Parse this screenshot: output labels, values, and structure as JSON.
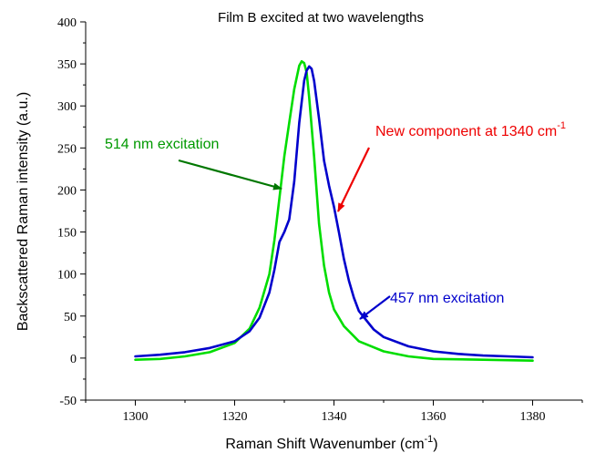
{
  "chart_data": {
    "type": "line",
    "title": "Film B excited at two wavelengths",
    "xlabel": "Raman Shift Wavenumber (cm",
    "xlabel_sup": "-1",
    "xlabel_end": ")",
    "ylabel": "Backscattered Raman intensity (a.u.)",
    "xlim": [
      1290,
      1390
    ],
    "ylim": [
      -50,
      400
    ],
    "xticks": [
      1300,
      1320,
      1340,
      1360,
      1380
    ],
    "yticks": [
      -50,
      0,
      50,
      100,
      150,
      200,
      250,
      300,
      350,
      400
    ],
    "grid": false,
    "series": [
      {
        "color": "#00dd00",
        "x": [
          1300,
          1305,
          1310,
          1315,
          1320,
          1323,
          1325,
          1327,
          1328,
          1329,
          1330,
          1331,
          1332,
          1333,
          1333.5,
          1334,
          1334.5,
          1335,
          1336,
          1337,
          1338,
          1339,
          1340,
          1342,
          1345,
          1350,
          1355,
          1360,
          1370,
          1380
        ],
        "values": [
          -2,
          -1,
          2,
          7,
          18,
          35,
          60,
          100,
          140,
          190,
          240,
          280,
          320,
          348,
          353,
          351,
          340,
          310,
          240,
          160,
          110,
          78,
          58,
          38,
          20,
          8,
          2,
          -1,
          -2,
          -3
        ]
      },
      {
        "color": "#0000cc",
        "x": [
          1300,
          1305,
          1310,
          1315,
          1320,
          1323,
          1325,
          1327,
          1328,
          1329,
          1330,
          1331,
          1332,
          1333,
          1334,
          1334.5,
          1335,
          1335.5,
          1336,
          1337,
          1338,
          1339,
          1340,
          1341,
          1342,
          1343,
          1344,
          1345,
          1348,
          1350,
          1355,
          1360,
          1365,
          1370,
          1375,
          1380
        ],
        "values": [
          2,
          4,
          7,
          12,
          20,
          32,
          48,
          78,
          105,
          138,
          150,
          165,
          210,
          280,
          330,
          342,
          347,
          344,
          330,
          285,
          235,
          205,
          180,
          150,
          118,
          92,
          72,
          56,
          34,
          25,
          14,
          8,
          5,
          3,
          2,
          1
        ]
      }
    ],
    "annotations": [
      {
        "text": "514 nm excitation",
        "color": "#009900"
      },
      {
        "text": "New component at 1340 cm",
        "sup": "-1",
        "color": "#ee0000"
      },
      {
        "text": "457 nm excitation",
        "color": "#0000cc"
      }
    ]
  }
}
